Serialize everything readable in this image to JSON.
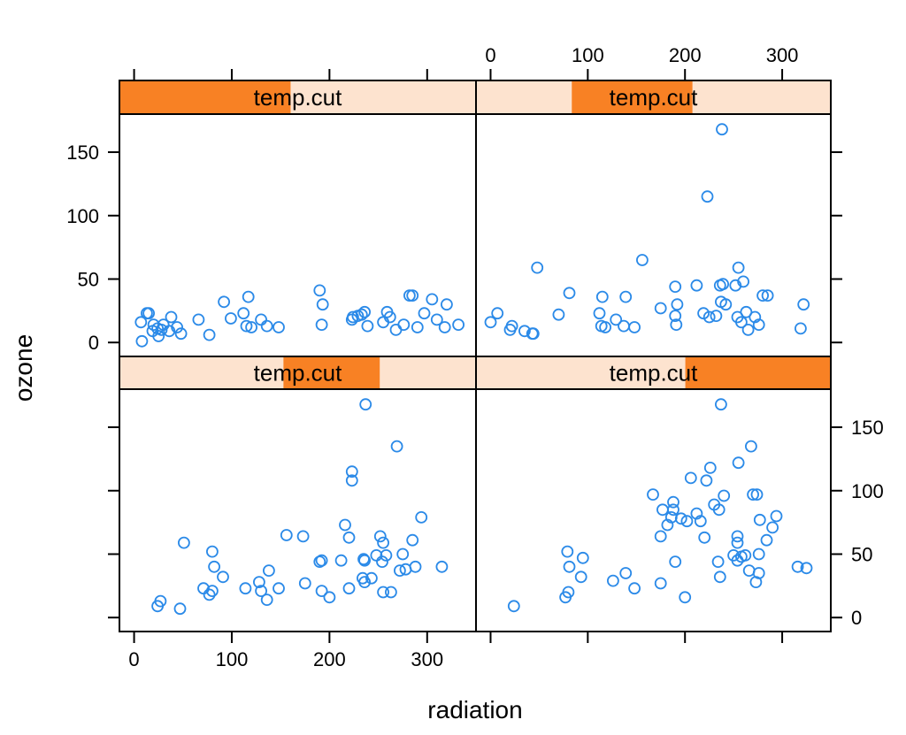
{
  "chart_data": {
    "type": "scatter",
    "layout": "lattice-2x2",
    "xlabel": "radiation",
    "ylabel": "ozone",
    "strip_label": "temp.cut",
    "xlim": [
      -15,
      350
    ],
    "ylim": [
      -11,
      180
    ],
    "x_ticks": [
      0,
      100,
      200,
      300
    ],
    "y_ticks": [
      0,
      50,
      100,
      150
    ],
    "colors": {
      "points": "#2b8ae8",
      "strip_bg": "#fde3cf",
      "strip_fill": "#f88124",
      "frame": "#000000"
    },
    "panels": [
      {
        "position": "top-left",
        "strip_range": [
          0.0,
          0.48
        ],
        "points": [
          [
            8,
            1
          ],
          [
            7,
            16
          ],
          [
            13,
            23
          ],
          [
            15,
            23
          ],
          [
            20,
            14
          ],
          [
            19,
            9
          ],
          [
            25,
            5
          ],
          [
            28,
            10
          ],
          [
            24,
            11
          ],
          [
            30,
            14
          ],
          [
            36,
            9
          ],
          [
            38,
            20
          ],
          [
            44,
            12
          ],
          [
            48,
            7
          ],
          [
            66,
            18
          ],
          [
            77,
            6
          ],
          [
            92,
            32
          ],
          [
            99,
            19
          ],
          [
            112,
            23
          ],
          [
            115,
            13
          ],
          [
            117,
            36
          ],
          [
            120,
            12
          ],
          [
            130,
            18
          ],
          [
            136,
            13
          ],
          [
            148,
            12
          ],
          [
            190,
            41
          ],
          [
            193,
            30
          ],
          [
            192,
            14
          ],
          [
            224,
            20
          ],
          [
            223,
            18
          ],
          [
            229,
            21
          ],
          [
            233,
            22
          ],
          [
            236,
            24
          ],
          [
            239,
            13
          ],
          [
            255,
            16
          ],
          [
            259,
            24
          ],
          [
            262,
            20
          ],
          [
            268,
            10
          ],
          [
            276,
            14
          ],
          [
            282,
            37
          ],
          [
            285,
            37
          ],
          [
            290,
            12
          ],
          [
            297,
            23
          ],
          [
            305,
            34
          ],
          [
            310,
            18
          ],
          [
            318,
            12
          ],
          [
            320,
            30
          ],
          [
            332,
            14
          ]
        ]
      },
      {
        "position": "top-right",
        "strip_range": [
          0.27,
          0.61
        ],
        "points": [
          [
            0,
            16
          ],
          [
            7,
            23
          ],
          [
            20,
            10
          ],
          [
            22,
            13
          ],
          [
            35,
            9
          ],
          [
            43,
            7
          ],
          [
            44,
            7
          ],
          [
            48,
            59
          ],
          [
            70,
            22
          ],
          [
            81,
            39
          ],
          [
            112,
            23
          ],
          [
            114,
            13
          ],
          [
            115,
            36
          ],
          [
            118,
            12
          ],
          [
            129,
            18
          ],
          [
            137,
            13
          ],
          [
            139,
            36
          ],
          [
            148,
            12
          ],
          [
            156,
            65
          ],
          [
            175,
            27
          ],
          [
            190,
            44
          ],
          [
            191,
            14
          ],
          [
            190,
            21
          ],
          [
            192,
            30
          ],
          [
            212,
            45
          ],
          [
            219,
            23
          ],
          [
            223,
            115
          ],
          [
            225,
            20
          ],
          [
            232,
            21
          ],
          [
            236,
            45
          ],
          [
            237,
            32
          ],
          [
            238,
            168
          ],
          [
            239,
            46
          ],
          [
            242,
            30
          ],
          [
            252,
            45
          ],
          [
            254,
            20
          ],
          [
            255,
            59
          ],
          [
            258,
            16
          ],
          [
            260,
            48
          ],
          [
            263,
            24
          ],
          [
            265,
            10
          ],
          [
            272,
            20
          ],
          [
            276,
            14
          ],
          [
            280,
            37
          ],
          [
            285,
            37
          ],
          [
            319,
            11
          ],
          [
            322,
            30
          ]
        ]
      },
      {
        "position": "bottom-left",
        "strip_range": [
          0.46,
          0.73
        ],
        "points": [
          [
            24,
            9
          ],
          [
            27,
            13
          ],
          [
            47,
            7
          ],
          [
            51,
            59
          ],
          [
            71,
            23
          ],
          [
            77,
            18
          ],
          [
            80,
            52
          ],
          [
            82,
            40
          ],
          [
            80,
            21
          ],
          [
            91,
            32
          ],
          [
            114,
            23
          ],
          [
            128,
            28
          ],
          [
            130,
            21
          ],
          [
            136,
            14
          ],
          [
            138,
            37
          ],
          [
            148,
            23
          ],
          [
            156,
            65
          ],
          [
            173,
            64
          ],
          [
            175,
            27
          ],
          [
            190,
            44
          ],
          [
            192,
            45
          ],
          [
            192,
            21
          ],
          [
            200,
            16
          ],
          [
            212,
            45
          ],
          [
            216,
            73
          ],
          [
            220,
            63
          ],
          [
            220,
            23
          ],
          [
            223,
            115
          ],
          [
            223,
            108
          ],
          [
            234,
            31
          ],
          [
            235,
            46
          ],
          [
            236,
            45
          ],
          [
            237,
            168
          ],
          [
            236,
            28
          ],
          [
            243,
            31
          ],
          [
            248,
            49
          ],
          [
            252,
            64
          ],
          [
            254,
            44
          ],
          [
            255,
            20
          ],
          [
            255,
            59
          ],
          [
            258,
            49
          ],
          [
            263,
            20
          ],
          [
            269,
            135
          ],
          [
            272,
            37
          ],
          [
            275,
            50
          ],
          [
            278,
            38
          ],
          [
            285,
            61
          ],
          [
            294,
            79
          ],
          [
            288,
            40
          ],
          [
            315,
            40
          ]
        ]
      },
      {
        "position": "bottom-right",
        "strip_range": [
          0.59,
          1.0
        ],
        "points": [
          [
            24,
            9
          ],
          [
            77,
            16
          ],
          [
            79,
            52
          ],
          [
            81,
            40
          ],
          [
            80,
            20
          ],
          [
            93,
            32
          ],
          [
            95,
            47
          ],
          [
            126,
            29
          ],
          [
            139,
            35
          ],
          [
            148,
            23
          ],
          [
            167,
            97
          ],
          [
            175,
            27
          ],
          [
            175,
            64
          ],
          [
            177,
            85
          ],
          [
            182,
            73
          ],
          [
            186,
            79
          ],
          [
            188,
            91
          ],
          [
            188,
            85
          ],
          [
            190,
            44
          ],
          [
            196,
            78
          ],
          [
            200,
            16
          ],
          [
            202,
            76
          ],
          [
            206,
            110
          ],
          [
            212,
            82
          ],
          [
            216,
            76
          ],
          [
            220,
            63
          ],
          [
            222,
            108
          ],
          [
            226,
            118
          ],
          [
            230,
            89
          ],
          [
            234,
            44
          ],
          [
            236,
            32
          ],
          [
            237,
            168
          ],
          [
            235,
            85
          ],
          [
            240,
            96
          ],
          [
            250,
            49
          ],
          [
            254,
            64
          ],
          [
            254,
            45
          ],
          [
            254,
            59
          ],
          [
            255,
            122
          ],
          [
            258,
            48
          ],
          [
            262,
            49
          ],
          [
            266,
            37
          ],
          [
            268,
            135
          ],
          [
            270,
            97
          ],
          [
            273,
            28
          ],
          [
            274,
            97
          ],
          [
            276,
            35
          ],
          [
            277,
            77
          ],
          [
            276,
            50
          ],
          [
            284,
            61
          ],
          [
            290,
            71
          ],
          [
            294,
            80
          ],
          [
            316,
            40
          ],
          [
            325,
            39
          ]
        ]
      }
    ]
  }
}
